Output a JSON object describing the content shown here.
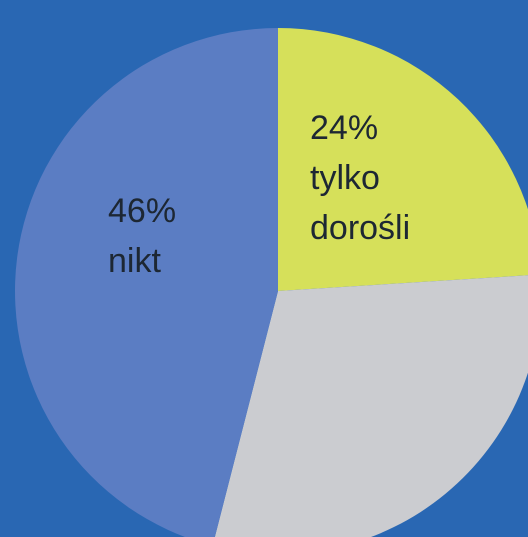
{
  "chart_data": {
    "type": "pie",
    "categories": [
      "tylko dorośli",
      null,
      "nikt"
    ],
    "values": [
      24,
      30,
      46
    ],
    "value_labels": [
      "24%",
      null,
      "46%"
    ],
    "colors": [
      "#d6e05a",
      "#cbccd0",
      "#5b7dc3"
    ]
  }
}
